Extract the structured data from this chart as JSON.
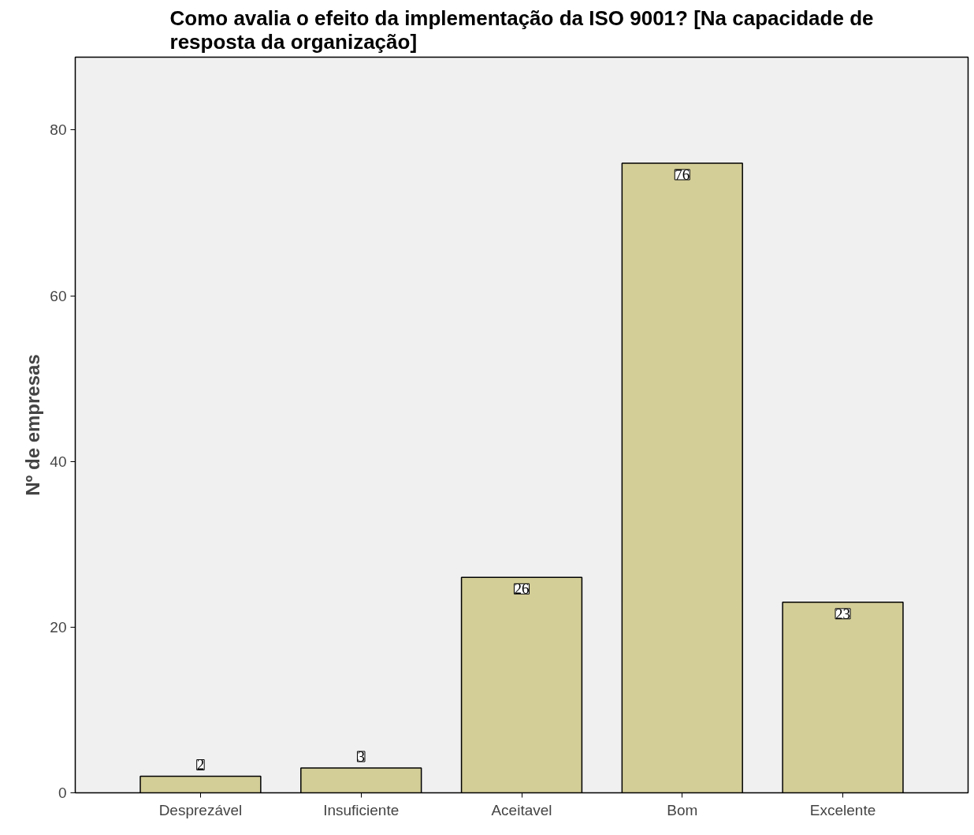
{
  "chart_data": {
    "type": "bar",
    "title": "Como avalia o efeito da implementação da ISO 9001? [Na capacidade de resposta da organização]",
    "ylabel": "Nº de empresas",
    "categories": [
      "Desprezável",
      "Insuficiente",
      "Aceitavel",
      "Bom",
      "Excelente"
    ],
    "values": [
      2,
      3,
      26,
      76,
      23
    ],
    "color": "#d3cd97",
    "ylim": [
      0,
      88.8
    ],
    "yticks": [
      0,
      20,
      40,
      60,
      80
    ],
    "grid": false,
    "data_labels": true
  }
}
